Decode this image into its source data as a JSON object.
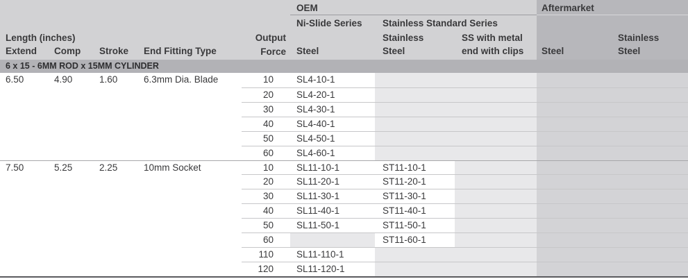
{
  "header": {
    "length_group": "Length (inches)",
    "extend": "Extend",
    "comp": "Comp",
    "stroke": "Stroke",
    "fitting": "End Fitting Type",
    "output_force": "Output\nForce",
    "group_oem": "OEM",
    "group_aftermarket": "Aftermarket",
    "series_nislide": "Ni-Slide Series",
    "series_stainless_standard": "Stainless Standard Series",
    "col_oem_steel": "Steel",
    "col_oem_stainless": "Stainless\nSteel",
    "col_oem_ss_metal": "SS with metal\nend with clips",
    "col_am_steel": "Steel",
    "col_am_stainless": "Stainless\nSteel"
  },
  "section_title": "6 x 15 - 6MM ROD x 15MM CYLINDER",
  "groups": [
    {
      "extend": "6.50",
      "comp": "4.90",
      "stroke": "1.60",
      "fitting": "6.3mm Dia. Blade",
      "rows": [
        {
          "force": "10",
          "steel": "SL4-10-1",
          "stainless": ""
        },
        {
          "force": "20",
          "steel": "SL4-20-1",
          "stainless": ""
        },
        {
          "force": "30",
          "steel": "SL4-30-1",
          "stainless": ""
        },
        {
          "force": "40",
          "steel": "SL4-40-1",
          "stainless": ""
        },
        {
          "force": "50",
          "steel": "SL4-50-1",
          "stainless": ""
        },
        {
          "force": "60",
          "steel": "SL4-60-1",
          "stainless": ""
        }
      ]
    },
    {
      "extend": "7.50",
      "comp": "5.25",
      "stroke": "2.25",
      "fitting": "10mm Socket",
      "rows": [
        {
          "force": "10",
          "steel": "SL11-10-1",
          "stainless": "ST11-10-1"
        },
        {
          "force": "20",
          "steel": "SL11-20-1",
          "stainless": "ST11-20-1"
        },
        {
          "force": "30",
          "steel": "SL11-30-1",
          "stainless": "ST11-30-1"
        },
        {
          "force": "40",
          "steel": "SL11-40-1",
          "stainless": "ST11-40-1"
        },
        {
          "force": "50",
          "steel": "SL11-50-1",
          "stainless": "ST11-50-1"
        },
        {
          "force": "60",
          "steel": "",
          "stainless": "ST11-60-1"
        },
        {
          "force": "110",
          "steel": "SL11-110-1",
          "stainless": ""
        },
        {
          "force": "120",
          "steel": "SL11-120-1",
          "stainless": ""
        }
      ]
    }
  ],
  "colors": {
    "page_bg": "#ffffff",
    "header_bg": "#d2d2d4",
    "aftermarket_bg": "#b7b7bb",
    "section_bg": "#b2b2b6",
    "oem_empty_cell": "#e8e8ea",
    "aftermarket_cell": "#d3d3d6",
    "row_line": "#c7c7c9",
    "group_line": "#a7a7aa",
    "oem_underline": "#9c9ca0",
    "aftermarket_underline": "#d7d7da",
    "bottom_border": "#5a5a5e",
    "text": "#39393b"
  }
}
